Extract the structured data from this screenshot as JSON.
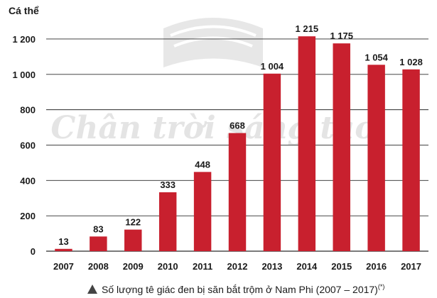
{
  "chart_data": {
    "type": "bar",
    "ylabel": "Cá thể",
    "ylim": [
      0,
      1300
    ],
    "yticks": [
      0,
      200,
      400,
      600,
      800,
      1000,
      1200
    ],
    "ytick_labels": [
      "0",
      "200",
      "400",
      "600",
      "800",
      "1 000",
      "1 200"
    ],
    "categories": [
      "2007",
      "2008",
      "2009",
      "2010",
      "2011",
      "2012",
      "2013",
      "2014",
      "2015",
      "2016",
      "2017"
    ],
    "values": [
      13,
      83,
      122,
      333,
      448,
      668,
      1004,
      1215,
      1175,
      1054,
      1028
    ],
    "value_labels": [
      "13",
      "83",
      "122",
      "333",
      "448",
      "668",
      "1 004",
      "1 215",
      "1 175",
      "1 054",
      "1 028"
    ],
    "bar_color": "#c8202e",
    "grid": true,
    "caption": "Số lượng tê giác đen bị săn bắt trộm ở Nam Phi (2007 – 2017)",
    "caption_note": "(*)",
    "watermark": "Chân trời sáng tạo"
  }
}
